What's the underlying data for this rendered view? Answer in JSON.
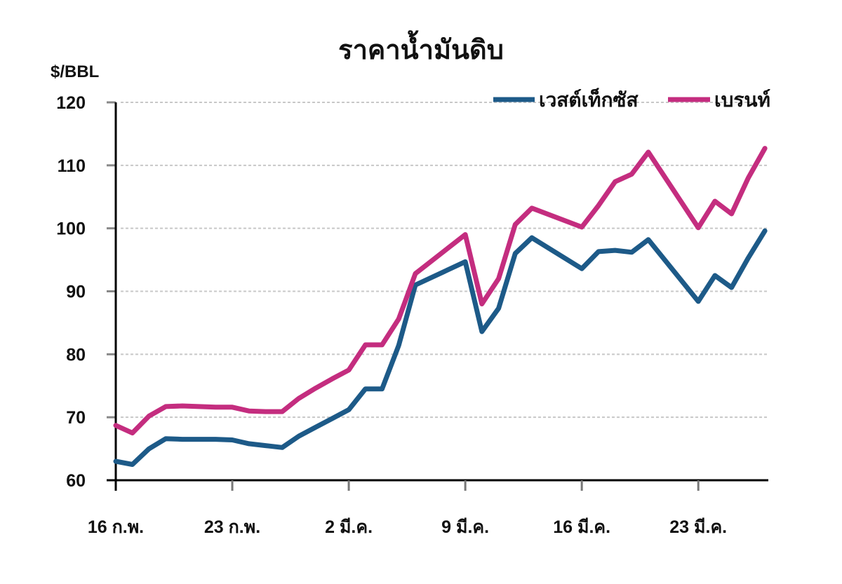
{
  "chart_data": {
    "type": "line",
    "title": "ราคาน้ำมันดิบ",
    "ylabel": "$/BBL",
    "xlabel": "",
    "ylim": [
      60,
      120
    ],
    "yticks": [
      60,
      70,
      80,
      90,
      100,
      110,
      120
    ],
    "grid": true,
    "legend_position": "top-right",
    "x_tick_labels": [
      "16 ก.พ.",
      "23 ก.พ.",
      "2 มี.ค.",
      "9 มี.ค.",
      "16 มี.ค.",
      "23 มี.ค."
    ],
    "x_tick_day_index": [
      0,
      7,
      14,
      21,
      28,
      35
    ],
    "x_day_range": [
      0,
      39
    ],
    "series": [
      {
        "name": "เวสต์เท็กซัส",
        "color": "#1d5a88",
        "points": [
          [
            0,
            63.0
          ],
          [
            1,
            62.5
          ],
          [
            2,
            65.0
          ],
          [
            3,
            66.6
          ],
          [
            4,
            66.5
          ],
          [
            5,
            66.5
          ],
          [
            6,
            66.5
          ],
          [
            7,
            66.4
          ],
          [
            8,
            65.8
          ],
          [
            9,
            65.5
          ],
          [
            10,
            65.2
          ],
          [
            11,
            67.0
          ],
          [
            12,
            68.4
          ],
          [
            13,
            69.8
          ],
          [
            14,
            71.2
          ],
          [
            15,
            74.5
          ],
          [
            16,
            74.5
          ],
          [
            17,
            81.4
          ],
          [
            18,
            91.0
          ],
          [
            21,
            94.7
          ],
          [
            22,
            83.6
          ],
          [
            23,
            87.3
          ],
          [
            24,
            96.0
          ],
          [
            25,
            98.5
          ],
          [
            28,
            93.6
          ],
          [
            29,
            96.3
          ],
          [
            30,
            96.5
          ],
          [
            31,
            96.2
          ],
          [
            32,
            98.2
          ],
          [
            35,
            88.4
          ],
          [
            36,
            92.5
          ],
          [
            37,
            90.6
          ],
          [
            38,
            95.3
          ],
          [
            39,
            99.6
          ]
        ]
      },
      {
        "name": "เบรนท์",
        "color": "#c42d7f",
        "points": [
          [
            0,
            68.7
          ],
          [
            1,
            67.5
          ],
          [
            2,
            70.2
          ],
          [
            3,
            71.7
          ],
          [
            4,
            71.8
          ],
          [
            5,
            71.7
          ],
          [
            6,
            71.6
          ],
          [
            7,
            71.6
          ],
          [
            8,
            71.0
          ],
          [
            9,
            70.9
          ],
          [
            10,
            70.9
          ],
          [
            11,
            73.0
          ],
          [
            12,
            74.6
          ],
          [
            13,
            76.1
          ],
          [
            14,
            77.5
          ],
          [
            15,
            81.5
          ],
          [
            16,
            81.5
          ],
          [
            17,
            85.6
          ],
          [
            18,
            92.8
          ],
          [
            21,
            99.0
          ],
          [
            22,
            88.0
          ],
          [
            23,
            92.0
          ],
          [
            24,
            100.6
          ],
          [
            25,
            103.2
          ],
          [
            28,
            100.2
          ],
          [
            29,
            103.6
          ],
          [
            30,
            107.4
          ],
          [
            31,
            108.6
          ],
          [
            32,
            112.1
          ],
          [
            35,
            100.1
          ],
          [
            36,
            104.3
          ],
          [
            37,
            102.3
          ],
          [
            38,
            108.0
          ],
          [
            39,
            112.7
          ]
        ]
      }
    ]
  },
  "header": {
    "title": "ราคาน้ำมันดิบ",
    "unit_label": "$/BBL"
  },
  "legend": {
    "items": [
      {
        "label": "เวสต์เท็กซัส",
        "color": "#1d5a88"
      },
      {
        "label": "เบรนท์",
        "color": "#c42d7f"
      }
    ]
  }
}
